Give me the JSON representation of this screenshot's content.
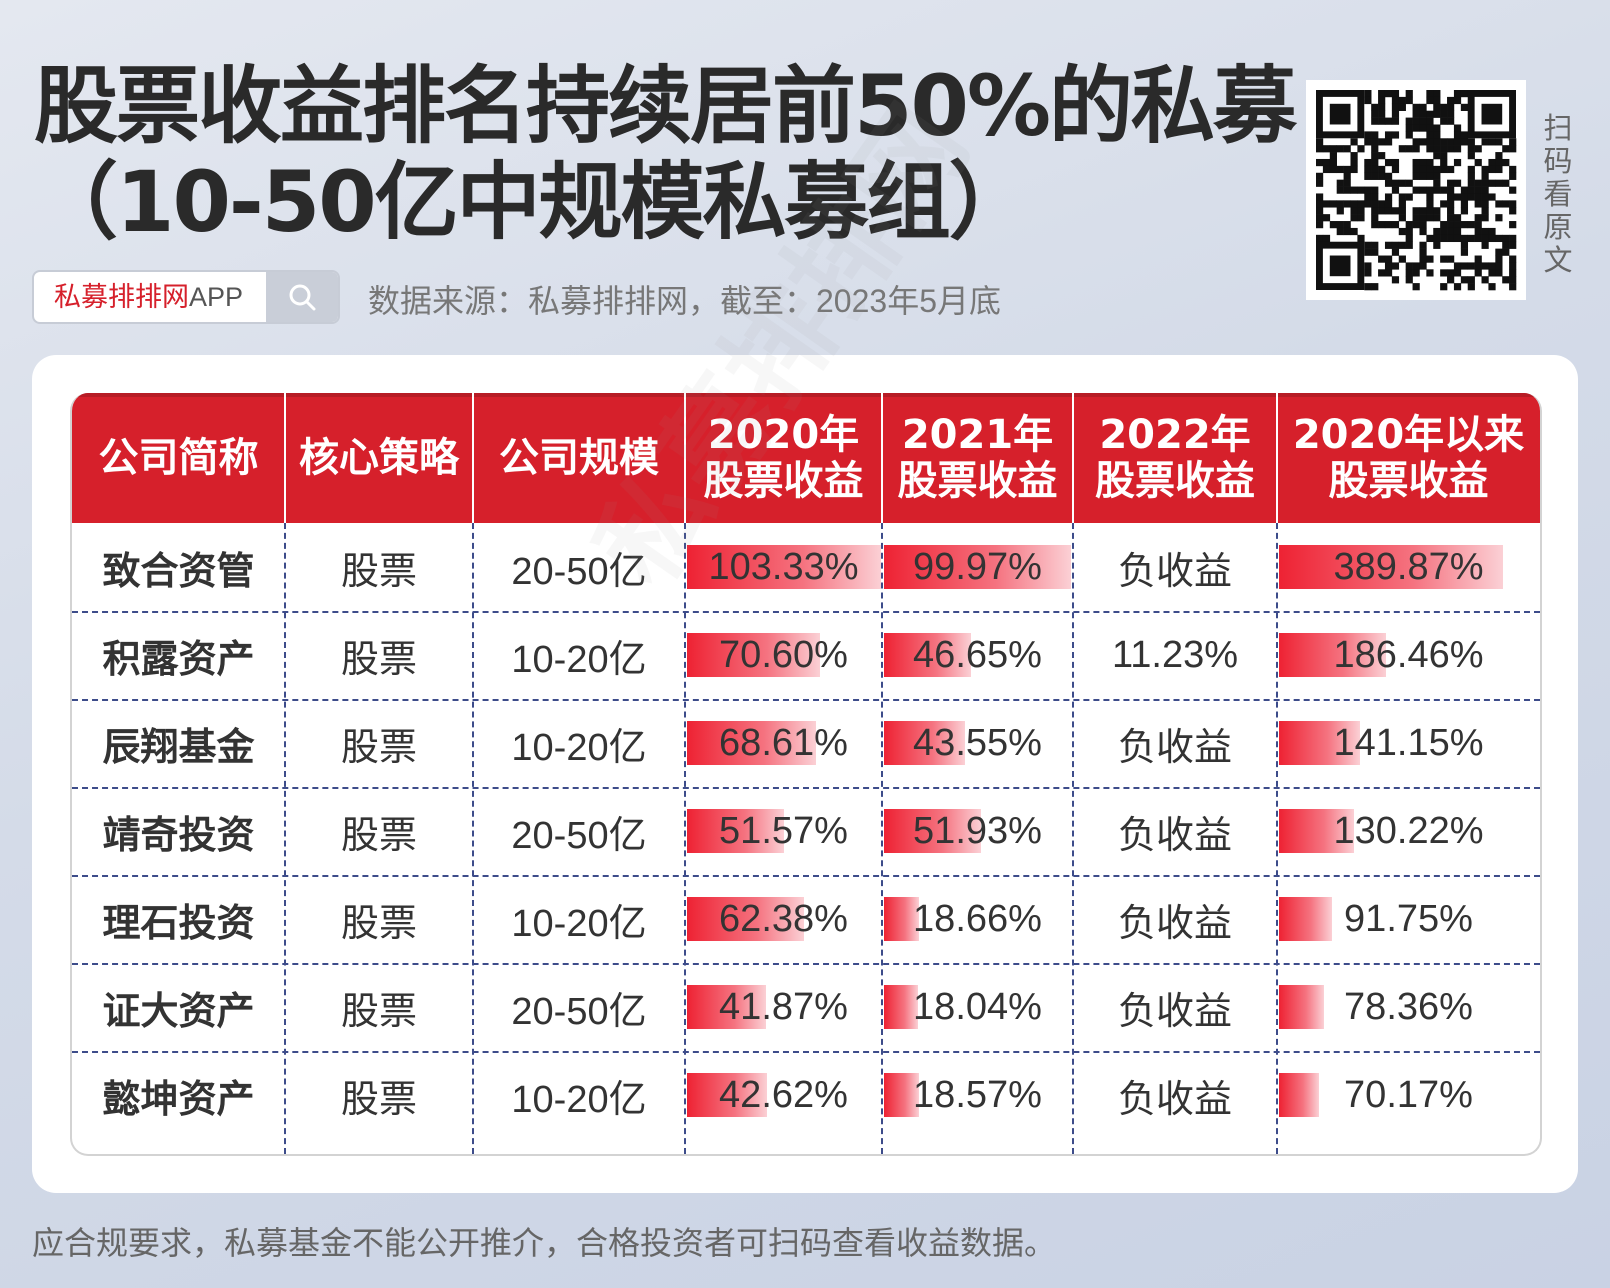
{
  "title_line1": "股票收益排名持续居前50%的私募",
  "title_line2": "（10-50亿中规模私募组）",
  "search": {
    "brand_red": "私募排排网",
    "brand_rest": "APP"
  },
  "source": "数据来源：私募排排网，截至：2023年5月底",
  "qr_caption": [
    "扫",
    "码",
    "看",
    "原",
    "文"
  ],
  "footer": "应合规要求，私募基金不能公开推介，合格投资者可扫码查看收益数据。",
  "watermark": "私募排排网",
  "colors": {
    "header_red": "#d6202b",
    "bar_red": "#ee2233"
  },
  "chart_data": {
    "type": "table",
    "columns": [
      [
        "公司简称"
      ],
      [
        "核心策略"
      ],
      [
        "公司规模"
      ],
      [
        "2020年",
        "股票收益"
      ],
      [
        "2021年",
        "股票收益"
      ],
      [
        "2022年",
        "股票收益"
      ],
      [
        "2020年以来",
        "股票收益"
      ]
    ],
    "rows": [
      {
        "name": "致合资管",
        "strategy": "股票",
        "scale": "20-50亿",
        "r2020": "103.33%",
        "r2021": "99.97%",
        "r2022": "负收益",
        "since2020": "389.87%"
      },
      {
        "name": "积露资产",
        "strategy": "股票",
        "scale": "10-20亿",
        "r2020": "70.60%",
        "r2021": "46.65%",
        "r2022": "11.23%",
        "since2020": "186.46%"
      },
      {
        "name": "辰翔基金",
        "strategy": "股票",
        "scale": "10-20亿",
        "r2020": "68.61%",
        "r2021": "43.55%",
        "r2022": "负收益",
        "since2020": "141.15%"
      },
      {
        "name": "靖奇投资",
        "strategy": "股票",
        "scale": "20-50亿",
        "r2020": "51.57%",
        "r2021": "51.93%",
        "r2022": "负收益",
        "since2020": "130.22%"
      },
      {
        "name": "理石投资",
        "strategy": "股票",
        "scale": "10-20亿",
        "r2020": "62.38%",
        "r2021": "18.66%",
        "r2022": "负收益",
        "since2020": "91.75%"
      },
      {
        "name": "证大资产",
        "strategy": "股票",
        "scale": "20-50亿",
        "r2020": "41.87%",
        "r2021": "18.04%",
        "r2022": "负收益",
        "since2020": "78.36%"
      },
      {
        "name": "懿坤资产",
        "strategy": "股票",
        "scale": "10-20亿",
        "r2020": "42.62%",
        "r2021": "18.57%",
        "r2022": "负收益",
        "since2020": "70.17%"
      }
    ],
    "bar_columns": {
      "r2020": [
        103.33,
        70.6,
        68.61,
        51.57,
        62.38,
        41.87,
        42.62
      ],
      "r2021": [
        99.97,
        46.65,
        43.55,
        51.93,
        18.66,
        18.04,
        18.57
      ],
      "since2020": [
        389.87,
        186.46,
        141.15,
        130.22,
        91.75,
        78.36,
        70.17
      ]
    }
  }
}
